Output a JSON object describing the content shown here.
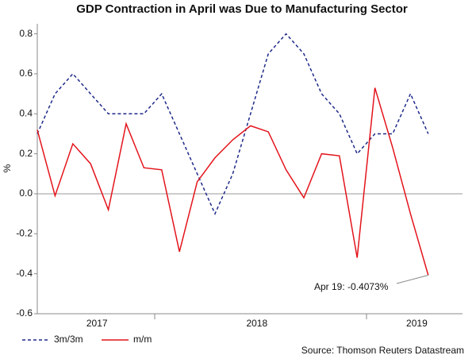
{
  "chart_data": {
    "type": "line",
    "title": "GDP Contraction in April was Due to Manufacturing Sector",
    "y_label": "%",
    "source": "Source: Thomson Reuters Datastream",
    "annotation": "Apr 19: -0.4073%",
    "categories": [
      null,
      null,
      null,
      "2017",
      null,
      null,
      null,
      null,
      null,
      null,
      null,
      null,
      "2018",
      null,
      null,
      null,
      null,
      null,
      null,
      null,
      null,
      "2019",
      null
    ],
    "series": [
      {
        "name": "3m/3m",
        "color": "#1f2a8a",
        "dashed": true,
        "values": [
          0.3,
          0.5,
          0.6,
          0.5,
          0.4,
          0.4,
          0.4,
          0.5,
          0.3,
          0.1,
          -0.1,
          0.1,
          0.4,
          0.7,
          0.8,
          0.7,
          0.5,
          0.4,
          0.2,
          0.3,
          0.3,
          0.5,
          0.3
        ]
      },
      {
        "name": "m/m",
        "color": "#e3141c",
        "dashed": false,
        "values": [
          0.32,
          -0.01,
          0.25,
          0.15,
          -0.08,
          0.35,
          0.13,
          0.12,
          -0.29,
          0.06,
          0.18,
          0.27,
          0.34,
          0.31,
          0.12,
          -0.02,
          0.2,
          0.19,
          -0.32,
          0.53,
          0.23,
          -0.1,
          -0.4073
        ]
      }
    ],
    "ylim": [
      -0.6,
      0.85
    ],
    "yticks": [
      -0.6,
      -0.4,
      -0.2,
      {
        "value": 0,
        "label": "0.0"
      },
      0.2,
      0.4,
      0.6,
      0.8
    ]
  }
}
